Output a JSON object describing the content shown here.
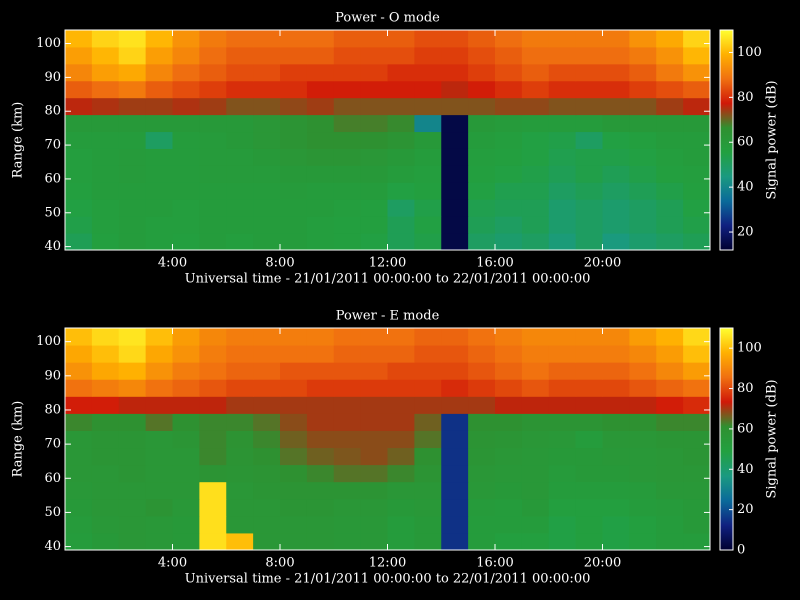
{
  "chart_data": [
    {
      "type": "heatmap",
      "title": "Power - O mode",
      "xlabel": "Universal time - 21/01/2011 00:00:00 to 22/01/2011 00:00:00",
      "ylabel": "Range (km)",
      "colorbar_label": "Signal power (dB)",
      "xlim": [
        0,
        24
      ],
      "ylim": [
        39,
        104
      ],
      "clim": [
        12,
        110
      ],
      "xticks": [
        {
          "value": 4,
          "label": "4:00"
        },
        {
          "value": 8,
          "label": "8:00"
        },
        {
          "value": 12,
          "label": "12:00"
        },
        {
          "value": 16,
          "label": "16:00"
        },
        {
          "value": 20,
          "label": "20:00"
        }
      ],
      "yticks": [
        40,
        50,
        60,
        70,
        80,
        90,
        100
      ],
      "cticks": [
        20,
        40,
        60,
        80,
        100
      ],
      "colormap": [
        "#000030",
        "#102080",
        "#0a6a9a",
        "#1a9a80",
        "#22a040",
        "#2f9030",
        "#d01808",
        "#f07010",
        "#ffb000",
        "#ffff30"
      ],
      "x": [
        0.5,
        1.5,
        2.5,
        3.5,
        4.5,
        5.5,
        6.5,
        7.5,
        8.5,
        9.5,
        10.5,
        11.5,
        12.5,
        13.5,
        14.5,
        15.5,
        16.5,
        17.5,
        18.5,
        19.5,
        20.5,
        21.5,
        22.5,
        23.5
      ],
      "y": [
        41.5,
        46.5,
        51.5,
        56.5,
        61.5,
        66.5,
        71.5,
        76.5,
        81.5,
        86.5,
        91.5,
        96.5,
        101.5
      ],
      "z": [
        [
          52,
          56,
          58,
          57,
          56,
          58,
          57,
          58,
          58,
          57,
          56,
          55,
          52,
          54,
          15,
          50,
          48,
          50,
          46,
          50,
          45,
          48,
          50,
          52
        ],
        [
          54,
          57,
          58,
          57,
          57,
          58,
          58,
          58,
          58,
          57,
          56,
          56,
          52,
          55,
          15,
          52,
          50,
          52,
          48,
          50,
          48,
          50,
          52,
          54
        ],
        [
          55,
          57,
          58,
          58,
          57,
          58,
          58,
          58,
          58,
          58,
          57,
          56,
          50,
          54,
          15,
          53,
          52,
          52,
          48,
          50,
          48,
          50,
          52,
          55
        ],
        [
          56,
          58,
          58,
          58,
          58,
          58,
          58,
          58,
          59,
          58,
          58,
          58,
          55,
          56,
          15,
          55,
          53,
          53,
          50,
          52,
          50,
          52,
          54,
          56
        ],
        [
          57,
          58,
          59,
          58,
          58,
          59,
          59,
          59,
          60,
          60,
          60,
          60,
          58,
          57,
          15,
          56,
          55,
          54,
          52,
          54,
          52,
          54,
          56,
          57
        ],
        [
          57,
          58,
          59,
          58,
          58,
          59,
          59,
          60,
          62,
          63,
          63,
          62,
          60,
          58,
          15,
          57,
          56,
          55,
          53,
          54,
          54,
          55,
          57,
          58
        ],
        [
          58,
          58,
          58,
          50,
          58,
          59,
          60,
          62,
          64,
          66,
          66,
          66,
          64,
          60,
          15,
          58,
          57,
          55,
          54,
          50,
          55,
          56,
          58,
          58
        ],
        [
          60,
          60,
          60,
          60,
          60,
          60,
          60,
          62,
          64,
          66,
          68,
          68,
          67,
          40,
          15,
          60,
          59,
          58,
          58,
          58,
          60,
          60,
          60,
          60
        ],
        [
          76,
          75,
          74,
          74,
          75,
          74,
          72,
          72,
          73,
          74,
          72,
          72,
          72,
          72,
          72,
          72,
          73,
          73,
          72,
          72,
          72,
          72,
          74,
          76
        ],
        [
          86,
          88,
          90,
          86,
          84,
          82,
          80,
          80,
          80,
          78,
          78,
          78,
          78,
          78,
          76,
          78,
          80,
          82,
          80,
          80,
          80,
          82,
          84,
          86
        ],
        [
          92,
          96,
          98,
          92,
          88,
          86,
          84,
          84,
          82,
          82,
          82,
          82,
          80,
          80,
          80,
          82,
          84,
          86,
          84,
          84,
          84,
          86,
          90,
          94
        ],
        [
          96,
          100,
          104,
          96,
          92,
          88,
          86,
          86,
          86,
          86,
          84,
          84,
          84,
          82,
          82,
          84,
          86,
          88,
          88,
          88,
          88,
          90,
          94,
          100
        ],
        [
          100,
          104,
          106,
          100,
          94,
          90,
          88,
          88,
          88,
          88,
          86,
          86,
          86,
          84,
          84,
          86,
          88,
          90,
          90,
          90,
          90,
          94,
          98,
          104
        ]
      ]
    },
    {
      "type": "heatmap",
      "title": "Power - E mode",
      "xlabel": "Universal time - 21/01/2011 00:00:00 to 22/01/2011 00:00:00",
      "ylabel": "Range (km)",
      "colorbar_label": "Signal power (dB)",
      "xlim": [
        0,
        24
      ],
      "ylim": [
        39,
        104
      ],
      "clim": [
        0,
        110
      ],
      "xticks": [
        {
          "value": 4,
          "label": "4:00"
        },
        {
          "value": 8,
          "label": "8:00"
        },
        {
          "value": 12,
          "label": "12:00"
        },
        {
          "value": 16,
          "label": "16:00"
        },
        {
          "value": 20,
          "label": "20:00"
        }
      ],
      "yticks": [
        40,
        50,
        60,
        70,
        80,
        90,
        100
      ],
      "cticks": [
        0,
        20,
        40,
        60,
        80,
        100
      ],
      "colormap": [
        "#000030",
        "#102080",
        "#0a6a9a",
        "#1a9a80",
        "#22a040",
        "#2f9030",
        "#d01808",
        "#f07010",
        "#ffb000",
        "#ffff30"
      ],
      "x": [
        0.5,
        1.5,
        2.5,
        3.5,
        4.5,
        5.5,
        6.5,
        7.5,
        8.5,
        9.5,
        10.5,
        11.5,
        12.5,
        13.5,
        14.5,
        15.5,
        16.5,
        17.5,
        18.5,
        19.5,
        20.5,
        21.5,
        22.5,
        23.5
      ],
      "y": [
        41.5,
        46.5,
        51.5,
        56.5,
        61.5,
        66.5,
        71.5,
        76.5,
        81.5,
        86.5,
        91.5,
        96.5,
        101.5
      ],
      "z": [
        [
          52,
          54,
          56,
          55,
          54,
          105,
          100,
          56,
          56,
          56,
          55,
          55,
          52,
          54,
          15,
          52,
          50,
          50,
          48,
          50,
          48,
          50,
          52,
          52
        ],
        [
          53,
          55,
          56,
          55,
          54,
          105,
          56,
          56,
          56,
          56,
          55,
          55,
          52,
          54,
          15,
          52,
          52,
          52,
          48,
          50,
          48,
          50,
          52,
          54
        ],
        [
          54,
          56,
          56,
          58,
          55,
          105,
          56,
          56,
          57,
          57,
          56,
          56,
          54,
          55,
          15,
          53,
          52,
          54,
          50,
          50,
          50,
          52,
          53,
          54
        ],
        [
          55,
          56,
          56,
          56,
          56,
          105,
          56,
          57,
          58,
          58,
          58,
          58,
          56,
          56,
          15,
          55,
          54,
          55,
          52,
          52,
          52,
          53,
          55,
          55
        ],
        [
          56,
          56,
          57,
          56,
          56,
          58,
          57,
          58,
          60,
          62,
          64,
          64,
          62,
          58,
          15,
          56,
          55,
          55,
          53,
          54,
          54,
          55,
          56,
          56
        ],
        [
          56,
          57,
          57,
          56,
          56,
          62,
          58,
          60,
          64,
          66,
          67,
          68,
          66,
          60,
          15,
          57,
          56,
          55,
          54,
          54,
          55,
          55,
          56,
          57
        ],
        [
          56,
          57,
          57,
          56,
          57,
          62,
          59,
          62,
          66,
          68,
          68,
          68,
          68,
          64,
          15,
          58,
          57,
          56,
          55,
          52,
          56,
          56,
          57,
          57
        ],
        [
          62,
          60,
          60,
          64,
          60,
          62,
          62,
          64,
          68,
          70,
          70,
          70,
          70,
          66,
          15,
          60,
          60,
          58,
          58,
          58,
          60,
          60,
          62,
          62
        ],
        [
          74,
          74,
          72,
          72,
          72,
          72,
          70,
          70,
          70,
          70,
          70,
          70,
          70,
          70,
          70,
          70,
          72,
          72,
          72,
          72,
          72,
          72,
          74,
          76
        ],
        [
          86,
          88,
          90,
          86,
          84,
          82,
          80,
          80,
          80,
          78,
          78,
          78,
          78,
          78,
          76,
          78,
          80,
          82,
          80,
          80,
          80,
          82,
          84,
          86
        ],
        [
          92,
          96,
          98,
          92,
          88,
          86,
          84,
          84,
          82,
          82,
          82,
          82,
          80,
          80,
          80,
          82,
          84,
          86,
          84,
          84,
          84,
          86,
          90,
          94
        ],
        [
          96,
          100,
          104,
          96,
          92,
          88,
          86,
          86,
          86,
          86,
          84,
          84,
          84,
          82,
          82,
          84,
          86,
          88,
          88,
          88,
          88,
          90,
          94,
          100
        ],
        [
          100,
          104,
          106,
          100,
          94,
          90,
          88,
          88,
          88,
          88,
          86,
          86,
          86,
          84,
          84,
          86,
          88,
          90,
          90,
          90,
          90,
          94,
          98,
          104
        ]
      ]
    }
  ]
}
